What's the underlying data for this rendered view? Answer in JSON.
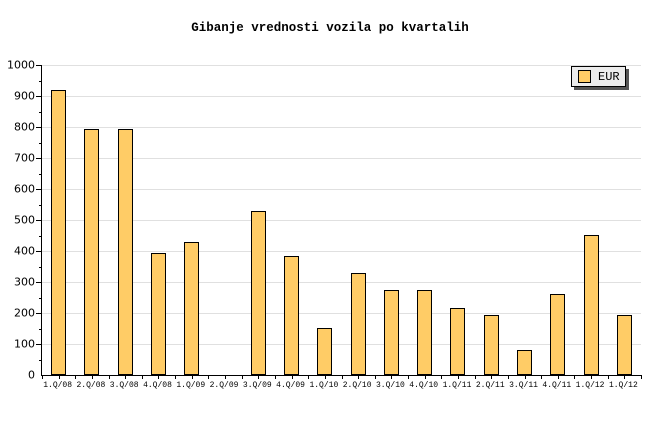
{
  "title": "Gibanje vrednosti vozila po kvartalih",
  "chart_data": {
    "type": "bar",
    "title": "Gibanje vrednosti vozila po kvartalih",
    "categories": [
      "1.Q/08",
      "2.Q/08",
      "3.Q/08",
      "4.Q/08",
      "1.Q/09",
      "2.Q/09",
      "3.Q/09",
      "4.Q/09",
      "1.Q/10",
      "2.Q/10",
      "3.Q/10",
      "4.Q/10",
      "1.Q/11",
      "2.Q/11",
      "3.Q/11",
      "4.Q/11",
      "1.Q/12",
      "1.Q/12"
    ],
    "series": [
      {
        "name": "EUR",
        "values": [
          920,
          795,
          795,
          395,
          430,
          null,
          530,
          385,
          150,
          330,
          275,
          275,
          215,
          195,
          80,
          260,
          450,
          195
        ]
      }
    ],
    "xlabel": "",
    "ylabel": "",
    "ylim": [
      0,
      1000
    ],
    "ytick_step": 100,
    "yminor_tick_step": 50,
    "ytick_labels": [
      "0",
      "100",
      "200",
      "300",
      "400",
      "500",
      "600",
      "700",
      "800",
      "900",
      "1000"
    ],
    "grid": "horizontal-only",
    "legend": {
      "position": "top-right",
      "entries": [
        "EUR"
      ]
    },
    "colors": {
      "bar_fill": "#ffcc66",
      "bar_border": "#000000",
      "gridline": "#e0e0e0",
      "axis": "#000000",
      "background": "#ffffff",
      "legend_bg": "#ececec",
      "legend_shadow": "#555555",
      "text": "#000000"
    }
  }
}
